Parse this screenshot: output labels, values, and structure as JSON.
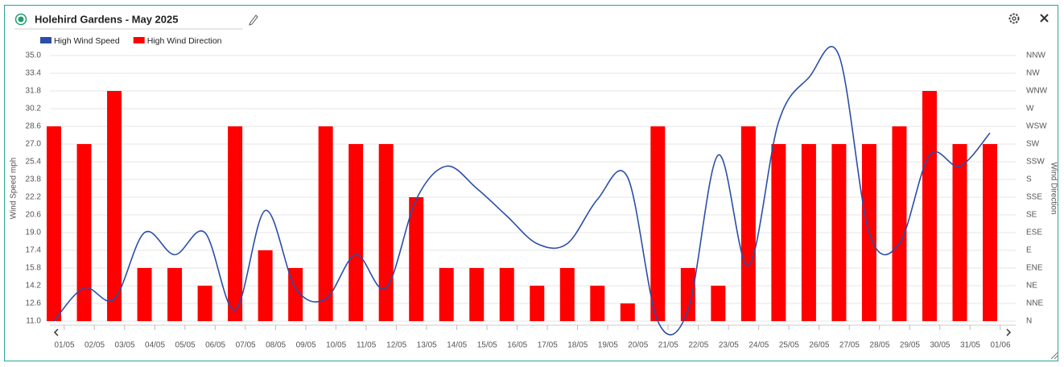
{
  "chart_data": {
    "type": "combo",
    "title": "Holehird Gardens - May 2025",
    "ylabel": "Wind Speed mph",
    "y2label": "Wind Direction",
    "categories": [
      "01/05",
      "02/05",
      "03/05",
      "04/05",
      "05/05",
      "06/05",
      "07/05",
      "08/05",
      "09/05",
      "10/05",
      "11/05",
      "12/05",
      "13/05",
      "14/05",
      "15/05",
      "16/05",
      "17/05",
      "18/05",
      "19/05",
      "20/05",
      "21/05",
      "22/05",
      "23/05",
      "24/05",
      "25/05",
      "26/05",
      "27/05",
      "28/05",
      "29/05",
      "30/05",
      "31/05",
      "01/06"
    ],
    "ylim": [
      11,
      35
    ],
    "yticks": [
      {
        "value": 11,
        "label": "11.0"
      },
      12.6,
      14.2,
      15.8,
      17.4,
      {
        "value": 19,
        "label": "19.0"
      },
      20.6,
      22.2,
      23.8,
      25.4,
      {
        "value": 27,
        "label": "27.0"
      },
      28.6,
      30.2,
      31.8,
      33.4,
      {
        "value": 35,
        "label": "35.0"
      }
    ],
    "y2lim": [
      0,
      15
    ],
    "y2ticks": [
      {
        "value": 0,
        "label": "N"
      },
      {
        "value": 1,
        "label": "NNE"
      },
      {
        "value": 2,
        "label": "NE"
      },
      {
        "value": 3,
        "label": "ENE"
      },
      {
        "value": 4,
        "label": "E"
      },
      {
        "value": 5,
        "label": "ESE"
      },
      {
        "value": 6,
        "label": "SE"
      },
      {
        "value": 7,
        "label": "SSE"
      },
      {
        "value": 8,
        "label": "S"
      },
      {
        "value": 9,
        "label": "SSW"
      },
      {
        "value": 10,
        "label": "SW"
      },
      {
        "value": 11,
        "label": "WSW"
      },
      {
        "value": 12,
        "label": "W"
      },
      {
        "value": 13,
        "label": "WNW"
      },
      {
        "value": 14,
        "label": "NW"
      },
      {
        "value": 15,
        "label": "NNW"
      }
    ],
    "grid": true,
    "legend": "top-left",
    "series": [
      {
        "name": "High Wind Speed",
        "type": "line",
        "color": "#2b4ea8",
        "values": [
          11,
          14,
          13,
          19,
          17,
          19,
          12,
          21,
          14,
          13,
          17,
          14,
          22,
          25,
          23,
          20.5,
          18,
          18,
          22,
          24,
          11,
          12,
          26,
          16,
          29,
          33,
          35,
          19,
          18,
          26,
          25,
          28
        ]
      },
      {
        "name": "High Wind Direction",
        "type": "bar",
        "color": "#ff0000",
        "axis": "y2",
        "values": [
          11,
          10,
          13,
          3,
          3,
          2,
          11,
          4,
          3,
          11,
          10,
          10,
          7,
          3,
          3,
          3,
          2,
          3,
          2,
          1,
          11,
          3,
          2,
          11,
          10,
          10,
          10,
          10,
          11,
          13,
          10,
          10
        ]
      }
    ]
  }
}
